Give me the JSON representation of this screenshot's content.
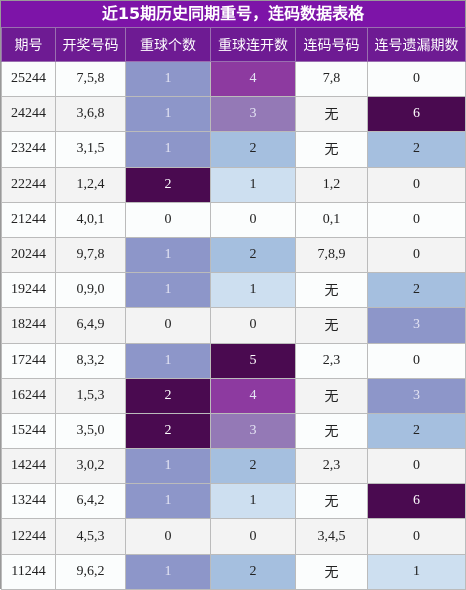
{
  "header": {
    "title": "近15期历史同期重号，连码数据表格"
  },
  "table": {
    "columns": [
      "期号",
      "开奖号码",
      "重球个数",
      "重球连开数",
      "连码号码",
      "连号遗漏期数"
    ],
    "rows": [
      [
        "25244",
        "7,5,8",
        "1",
        "4",
        "7,8",
        "0"
      ],
      [
        "24244",
        "3,6,8",
        "1",
        "3",
        "无",
        "6"
      ],
      [
        "23244",
        "3,1,5",
        "1",
        "2",
        "无",
        "2"
      ],
      [
        "22244",
        "1,2,4",
        "2",
        "1",
        "1,2",
        "0"
      ],
      [
        "21244",
        "4,0,1",
        "0",
        "0",
        "0,1",
        "0"
      ],
      [
        "20244",
        "9,7,8",
        "1",
        "2",
        "7,8,9",
        "0"
      ],
      [
        "19244",
        "0,9,0",
        "1",
        "1",
        "无",
        "2"
      ],
      [
        "18244",
        "6,4,9",
        "0",
        "0",
        "无",
        "3"
      ],
      [
        "17244",
        "8,3,2",
        "1",
        "5",
        "2,3",
        "0"
      ],
      [
        "16244",
        "1,5,3",
        "2",
        "4",
        "无",
        "3"
      ],
      [
        "15244",
        "3,5,0",
        "2",
        "3",
        "无",
        "2"
      ],
      [
        "14244",
        "3,0,2",
        "1",
        "2",
        "2,3",
        "0"
      ],
      [
        "13244",
        "6,4,2",
        "1",
        "1",
        "无",
        "6"
      ],
      [
        "12244",
        "4,5,3",
        "0",
        "0",
        "3,4,5",
        "0"
      ],
      [
        "11244",
        "9,6,2",
        "1",
        "2",
        "无",
        "1"
      ]
    ],
    "fills": [
      [
        "#8d96c9",
        "#8d3aa0",
        null
      ],
      [
        "#8d96c9",
        "#9479b6",
        "#4a0a50"
      ],
      [
        "#8d96c9",
        "#a5bfdf",
        "#a5bfdf"
      ],
      [
        "#4a0a50",
        "#cddff0",
        null
      ],
      [
        null,
        null,
        null
      ],
      [
        "#8d96c9",
        "#a5bfdf",
        null
      ],
      [
        "#8d96c9",
        "#cddff0",
        "#a5bfdf"
      ],
      [
        null,
        null,
        "#8d96c9"
      ],
      [
        "#8d96c9",
        "#4a0a50",
        null
      ],
      [
        "#4a0a50",
        "#8d3aa0",
        "#8d96c9"
      ],
      [
        "#4a0a50",
        "#9479b6",
        "#a5bfdf"
      ],
      [
        "#8d96c9",
        "#a5bfdf",
        null
      ],
      [
        "#8d96c9",
        "#cddff0",
        "#4a0a50"
      ],
      [
        null,
        null,
        null
      ],
      [
        "#8d96c9",
        "#a5bfdf",
        "#cddff0"
      ]
    ]
  }
}
